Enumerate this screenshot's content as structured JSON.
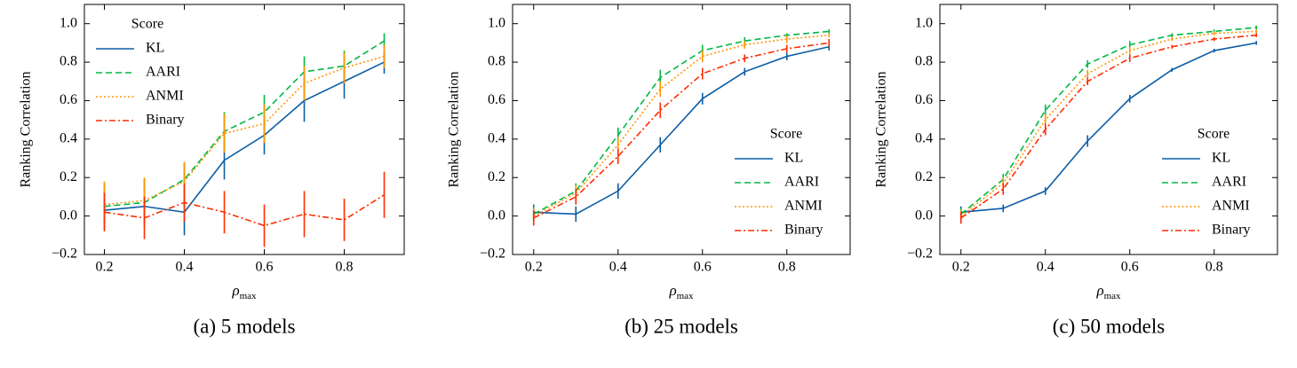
{
  "chart_data": [
    {
      "type": "line",
      "caption": "(a) 5 models",
      "ylabel": "Ranking Correlation",
      "xlabel": {
        "base": "ρ",
        "subscript": "max"
      },
      "x": [
        0.2,
        0.3,
        0.4,
        0.5,
        0.6,
        0.7,
        0.8,
        0.9
      ],
      "xlim": [
        0.15,
        0.95
      ],
      "xticks": [
        0.2,
        0.4,
        0.6,
        0.8
      ],
      "ylim": [
        -0.2,
        1.1
      ],
      "yticks": [
        {
          "value": -0.2,
          "label": "−0.2"
        },
        {
          "value": 0,
          "label": "0.0"
        },
        0.2,
        0.4,
        0.6,
        0.8,
        {
          "value": 1,
          "label": "1.0"
        }
      ],
      "legend_title": "Score",
      "legend_loc": "upper-left",
      "series": [
        {
          "name": "KL",
          "color": "#0C5DA5",
          "linestyle": "solid",
          "values": [
            0.03,
            0.05,
            0.02,
            0.29,
            0.42,
            0.6,
            0.7,
            0.8
          ],
          "errors": [
            0.05,
            0.05,
            0.12,
            0.1,
            0.1,
            0.11,
            0.09,
            0.06
          ]
        },
        {
          "name": "AARI",
          "color": "#00B945",
          "linestyle": "dashed",
          "values": [
            0.05,
            0.07,
            0.19,
            0.44,
            0.54,
            0.75,
            0.78,
            0.91
          ],
          "errors": [
            0.12,
            0.12,
            0.09,
            0.1,
            0.09,
            0.08,
            0.08,
            0.04
          ]
        },
        {
          "name": "ANMI",
          "color": "#FF9500",
          "linestyle": "dotted",
          "values": [
            0.06,
            0.08,
            0.18,
            0.43,
            0.48,
            0.69,
            0.77,
            0.83
          ],
          "errors": [
            0.12,
            0.12,
            0.1,
            0.1,
            0.1,
            0.09,
            0.08,
            0.06
          ]
        },
        {
          "name": "Binary",
          "color": "#FF2C00",
          "linestyle": "dashdot",
          "values": [
            0.02,
            -0.01,
            0.07,
            0.02,
            -0.05,
            0.01,
            -0.02,
            0.11
          ],
          "errors": [
            0.1,
            0.11,
            0.1,
            0.11,
            0.11,
            0.12,
            0.11,
            0.12
          ]
        }
      ]
    },
    {
      "type": "line",
      "caption": "(b) 25 models",
      "ylabel": "Ranking Correlation",
      "xlabel": {
        "base": "ρ",
        "subscript": "max"
      },
      "x": [
        0.2,
        0.3,
        0.4,
        0.5,
        0.6,
        0.7,
        0.8,
        0.9
      ],
      "xlim": [
        0.15,
        0.95
      ],
      "xticks": [
        0.2,
        0.4,
        0.6,
        0.8
      ],
      "ylim": [
        -0.2,
        1.1
      ],
      "yticks": [
        {
          "value": -0.2,
          "label": "−0.2"
        },
        {
          "value": 0,
          "label": "0.0"
        },
        0.2,
        0.4,
        0.6,
        0.8,
        {
          "value": 1,
          "label": "1.0"
        }
      ],
      "legend_title": "Score",
      "legend_loc": "lower-right",
      "series": [
        {
          "name": "KL",
          "color": "#0C5DA5",
          "linestyle": "solid",
          "values": [
            0.02,
            0.01,
            0.13,
            0.37,
            0.61,
            0.75,
            0.83,
            0.88
          ],
          "errors": [
            0.04,
            0.04,
            0.04,
            0.04,
            0.03,
            0.02,
            0.02,
            0.02
          ]
        },
        {
          "name": "AARI",
          "color": "#00B945",
          "linestyle": "dashed",
          "values": [
            0.01,
            0.13,
            0.42,
            0.72,
            0.86,
            0.91,
            0.94,
            0.96
          ],
          "errors": [
            0.04,
            0.04,
            0.04,
            0.04,
            0.03,
            0.02,
            0.01,
            0.01
          ]
        },
        {
          "name": "ANMI",
          "color": "#FF9500",
          "linestyle": "dotted",
          "values": [
            0,
            0.12,
            0.37,
            0.66,
            0.83,
            0.89,
            0.92,
            0.94
          ],
          "errors": [
            0.04,
            0.04,
            0.04,
            0.04,
            0.03,
            0.02,
            0.02,
            0.01
          ]
        },
        {
          "name": "Binary",
          "color": "#FF2C00",
          "linestyle": "dashdot",
          "values": [
            -0.01,
            0.1,
            0.31,
            0.55,
            0.74,
            0.82,
            0.87,
            0.9
          ],
          "errors": [
            0.04,
            0.04,
            0.04,
            0.04,
            0.03,
            0.02,
            0.02,
            0.02
          ]
        }
      ]
    },
    {
      "type": "line",
      "caption": "(c) 50 models",
      "ylabel": "Ranking Correlation",
      "xlabel": {
        "base": "ρ",
        "subscript": "max"
      },
      "x": [
        0.2,
        0.3,
        0.4,
        0.5,
        0.6,
        0.7,
        0.8,
        0.9
      ],
      "xlim": [
        0.15,
        0.95
      ],
      "xticks": [
        0.2,
        0.4,
        0.6,
        0.8
      ],
      "ylim": [
        -0.2,
        1.1
      ],
      "yticks": [
        {
          "value": -0.2,
          "label": "−0.2"
        },
        {
          "value": 0,
          "label": "0.0"
        },
        0.2,
        0.4,
        0.6,
        0.8,
        {
          "value": 1,
          "label": "1.0"
        }
      ],
      "legend_title": "Score",
      "legend_loc": "lower-right",
      "series": [
        {
          "name": "KL",
          "color": "#0C5DA5",
          "linestyle": "solid",
          "values": [
            0.02,
            0.04,
            0.13,
            0.39,
            0.61,
            0.76,
            0.86,
            0.9
          ],
          "errors": [
            0.03,
            0.02,
            0.02,
            0.03,
            0.02,
            0.01,
            0.01,
            0.01
          ]
        },
        {
          "name": "AARI",
          "color": "#00B945",
          "linestyle": "dashed",
          "values": [
            0.01,
            0.19,
            0.55,
            0.79,
            0.89,
            0.94,
            0.96,
            0.98
          ],
          "errors": [
            0.03,
            0.03,
            0.03,
            0.02,
            0.02,
            0.01,
            0.01,
            0.01
          ]
        },
        {
          "name": "ANMI",
          "color": "#FF9500",
          "linestyle": "dotted",
          "values": [
            0,
            0.17,
            0.5,
            0.74,
            0.86,
            0.92,
            0.95,
            0.96
          ],
          "errors": [
            0.03,
            0.03,
            0.03,
            0.02,
            0.02,
            0.01,
            0.01,
            0.01
          ]
        },
        {
          "name": "Binary",
          "color": "#FF2C00",
          "linestyle": "dashdot",
          "values": [
            -0.01,
            0.14,
            0.45,
            0.7,
            0.82,
            0.88,
            0.92,
            0.94
          ],
          "errors": [
            0.03,
            0.03,
            0.03,
            0.02,
            0.02,
            0.01,
            0.01,
            0.01
          ]
        }
      ]
    }
  ]
}
